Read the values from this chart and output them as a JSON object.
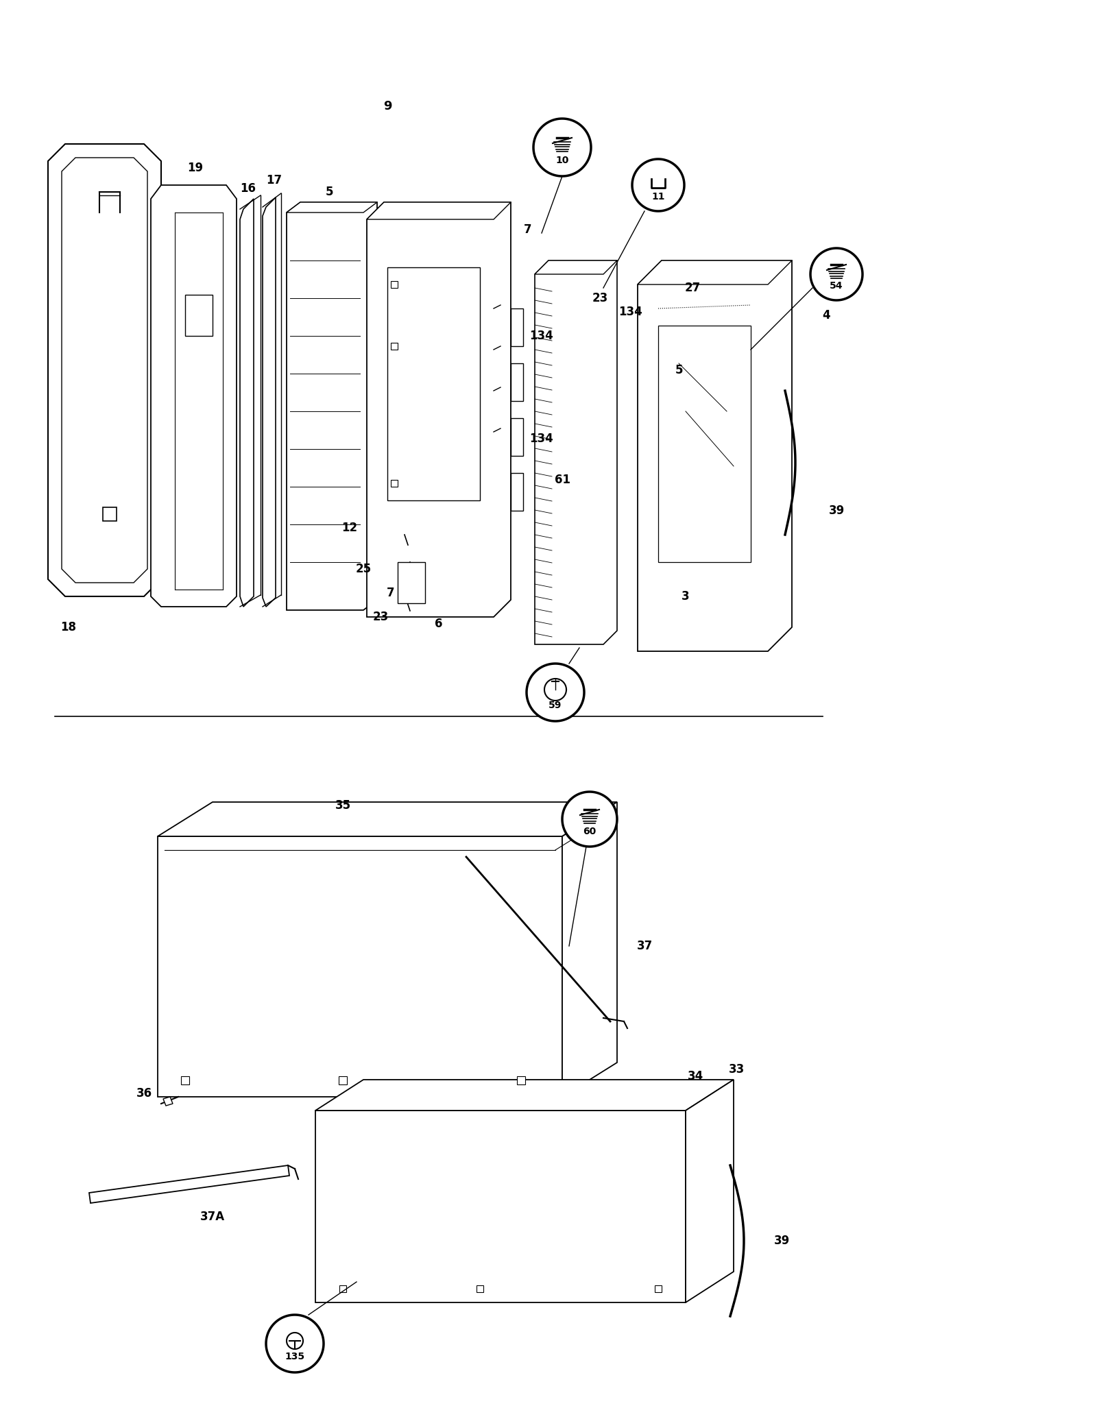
{
  "background_color": "#ffffff",
  "fig_width": 16.0,
  "fig_height": 20.7
}
